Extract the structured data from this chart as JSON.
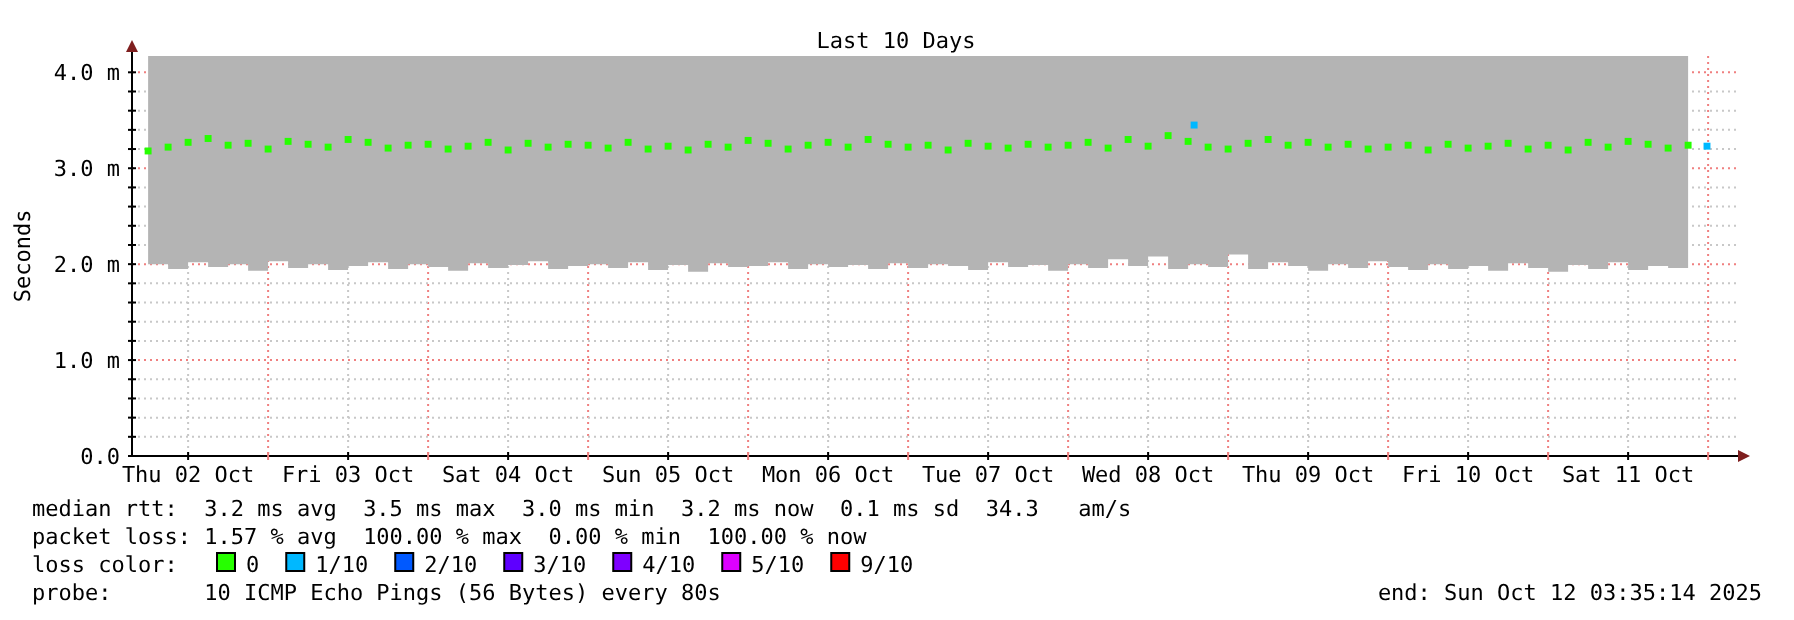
{
  "chart_data": {
    "type": "scatter",
    "title": "Last 10 Days",
    "ylabel": "Seconds",
    "xlim": [
      "2025-10-02T03:35",
      "2025-10-12T03:35"
    ],
    "xticks": [
      {
        "value": "2025-10-02T12:00",
        "label": "Thu 02 Oct"
      },
      {
        "value": "2025-10-03T00:00",
        "label": null
      },
      {
        "value": "2025-10-03T12:00",
        "label": "Fri 03 Oct"
      },
      {
        "value": "2025-10-04T00:00",
        "label": null
      },
      {
        "value": "2025-10-04T12:00",
        "label": "Sat 04 Oct"
      },
      {
        "value": "2025-10-05T00:00",
        "label": null
      },
      {
        "value": "2025-10-05T12:00",
        "label": "Sun 05 Oct"
      },
      {
        "value": "2025-10-06T00:00",
        "label": null
      },
      {
        "value": "2025-10-06T12:00",
        "label": "Mon 06 Oct"
      },
      {
        "value": "2025-10-07T00:00",
        "label": null
      },
      {
        "value": "2025-10-07T12:00",
        "label": "Tue 07 Oct"
      },
      {
        "value": "2025-10-08T00:00",
        "label": null
      },
      {
        "value": "2025-10-08T12:00",
        "label": "Wed 08 Oct"
      },
      {
        "value": "2025-10-09T00:00",
        "label": null
      },
      {
        "value": "2025-10-09T12:00",
        "label": "Thu 09 Oct"
      },
      {
        "value": "2025-10-10T00:00",
        "label": null
      },
      {
        "value": "2025-10-10T12:00",
        "label": "Fri 10 Oct"
      },
      {
        "value": "2025-10-11T00:00",
        "label": null
      },
      {
        "value": "2025-10-11T12:00",
        "label": "Sat 11 Oct"
      },
      {
        "value": "2025-10-12T00:00",
        "label": null
      }
    ],
    "ylim": [
      0,
      4.17
    ],
    "yticks": [
      {
        "value": 0,
        "label": "0.0"
      },
      {
        "value": 0.2,
        "label": null
      },
      {
        "value": 0.4,
        "label": null
      },
      {
        "value": 0.6,
        "label": null
      },
      {
        "value": 0.8,
        "label": null
      },
      {
        "value": 1,
        "label": "1.0 m"
      },
      {
        "value": 1.2,
        "label": null
      },
      {
        "value": 1.4,
        "label": null
      },
      {
        "value": 1.6,
        "label": null
      },
      {
        "value": 1.8,
        "label": null
      },
      {
        "value": 2,
        "label": "2.0 m"
      },
      {
        "value": 2.2,
        "label": null
      },
      {
        "value": 2.4,
        "label": null
      },
      {
        "value": 2.6,
        "label": null
      },
      {
        "value": 2.8,
        "label": null
      },
      {
        "value": 3,
        "label": "3.0 m"
      },
      {
        "value": 3.2,
        "label": null
      },
      {
        "value": 3.4,
        "label": null
      },
      {
        "value": 3.6,
        "label": null
      },
      {
        "value": 3.8,
        "label": null
      },
      {
        "value": 4,
        "label": "4.0 m"
      }
    ],
    "grid": true,
    "marker": "square",
    "legend": "bottom",
    "legend_title": "loss color:",
    "annotations": [
      "median rtt:  3.2 ms avg  3.5 ms max  3.0 ms min  3.2 ms now  0.1 ms sd  34.3   am/s",
      "packet loss: 1.57 % avg  100.00 % max  0.00 % min  100.00 % now",
      "probe:       10 ICMP Echo Pings (56 Bytes) every 80s",
      "end: Sun Oct 12 03:35:14 2025"
    ],
    "series": [
      {
        "name": "0",
        "color": "#26ff00",
        "x": [
          "2025-10-02T06:00",
          "2025-10-02T09:00",
          "2025-10-02T12:00",
          "2025-10-02T15:00",
          "2025-10-02T18:00",
          "2025-10-02T21:00",
          "2025-10-03T00:00",
          "2025-10-03T03:00",
          "2025-10-03T06:00",
          "2025-10-03T09:00",
          "2025-10-03T12:00",
          "2025-10-03T15:00",
          "2025-10-03T18:00",
          "2025-10-03T21:00",
          "2025-10-04T00:00",
          "2025-10-04T03:00",
          "2025-10-04T06:00",
          "2025-10-04T09:00",
          "2025-10-04T12:00",
          "2025-10-04T15:00",
          "2025-10-04T18:00",
          "2025-10-04T21:00",
          "2025-10-05T00:00",
          "2025-10-05T03:00",
          "2025-10-05T06:00",
          "2025-10-05T09:00",
          "2025-10-05T12:00",
          "2025-10-05T15:00",
          "2025-10-05T18:00",
          "2025-10-05T21:00",
          "2025-10-06T00:00",
          "2025-10-06T03:00",
          "2025-10-06T06:00",
          "2025-10-06T09:00",
          "2025-10-06T12:00",
          "2025-10-06T15:00",
          "2025-10-06T18:00",
          "2025-10-06T21:00",
          "2025-10-07T00:00",
          "2025-10-07T03:00",
          "2025-10-07T06:00",
          "2025-10-07T09:00",
          "2025-10-07T12:00",
          "2025-10-07T15:00",
          "2025-10-07T18:00",
          "2025-10-07T21:00",
          "2025-10-08T00:00",
          "2025-10-08T03:00",
          "2025-10-08T06:00",
          "2025-10-08T09:00",
          "2025-10-08T12:00",
          "2025-10-08T15:00",
          "2025-10-08T18:00",
          "2025-10-08T21:00",
          "2025-10-09T00:00",
          "2025-10-09T03:00",
          "2025-10-09T06:00",
          "2025-10-09T09:00",
          "2025-10-09T12:00",
          "2025-10-09T15:00",
          "2025-10-09T18:00",
          "2025-10-09T21:00",
          "2025-10-10T00:00",
          "2025-10-10T03:00",
          "2025-10-10T06:00",
          "2025-10-10T09:00",
          "2025-10-10T12:00",
          "2025-10-10T15:00",
          "2025-10-10T18:00",
          "2025-10-10T21:00",
          "2025-10-11T00:00",
          "2025-10-11T03:00",
          "2025-10-11T06:00",
          "2025-10-11T09:00",
          "2025-10-11T12:00",
          "2025-10-11T15:00",
          "2025-10-11T18:00",
          "2025-10-11T21:00"
        ],
        "values": [
          3.18,
          3.22,
          3.27,
          3.31,
          3.24,
          3.26,
          3.2,
          3.28,
          3.25,
          3.22,
          3.3,
          3.27,
          3.21,
          3.24,
          3.25,
          3.2,
          3.23,
          3.27,
          3.19,
          3.26,
          3.22,
          3.25,
          3.24,
          3.21,
          3.27,
          3.2,
          3.23,
          3.19,
          3.25,
          3.22,
          3.29,
          3.26,
          3.2,
          3.24,
          3.27,
          3.22,
          3.3,
          3.25,
          3.22,
          3.24,
          3.19,
          3.26,
          3.23,
          3.21,
          3.25,
          3.22,
          3.24,
          3.27,
          3.21,
          3.3,
          3.23,
          3.34,
          3.28,
          3.22,
          3.2,
          3.26,
          3.3,
          3.24,
          3.27,
          3.22,
          3.25,
          3.2,
          3.22,
          3.24,
          3.19,
          3.25,
          3.21,
          3.23,
          3.26,
          3.2,
          3.24,
          3.19,
          3.27,
          3.22,
          3.28,
          3.25,
          3.21,
          3.24
        ],
        "lower": [
          2.0,
          1.95,
          2.02,
          1.97,
          2.0,
          1.93,
          2.03,
          1.96,
          2.0,
          1.94,
          1.98,
          2.02,
          1.95,
          2.0,
          1.97,
          1.93,
          2.01,
          1.96,
          1.99,
          2.03,
          1.95,
          1.98,
          2.0,
          1.96,
          2.02,
          1.94,
          1.99,
          1.92,
          2.01,
          1.97,
          1.98,
          2.02,
          1.95,
          2.0,
          1.97,
          1.99,
          1.95,
          2.01,
          1.96,
          2.0,
          1.98,
          1.94,
          2.02,
          1.97,
          1.99,
          1.93,
          2.0,
          1.96,
          2.05,
          1.98,
          2.08,
          1.95,
          2.0,
          1.97,
          2.1,
          1.95,
          2.02,
          1.98,
          1.93,
          2.0,
          1.96,
          2.03,
          1.97,
          1.94,
          2.0,
          1.95,
          1.98,
          1.93,
          2.01,
          1.96,
          1.92,
          1.99,
          1.95,
          2.02,
          1.94,
          1.98,
          1.96,
          2.0
        ],
        "upper": [
          4.17,
          4.17,
          4.17,
          4.17,
          4.17,
          4.17,
          4.17,
          4.17,
          4.17,
          4.17,
          4.17,
          4.17,
          4.17,
          4.17,
          4.17,
          4.17,
          4.17,
          4.17,
          4.17,
          4.17,
          4.17,
          4.17,
          4.17,
          4.17,
          4.17,
          4.17,
          4.17,
          4.17,
          4.17,
          4.17,
          4.17,
          4.17,
          4.17,
          4.17,
          4.17,
          4.17,
          4.17,
          4.17,
          4.17,
          4.17,
          4.17,
          4.17,
          4.17,
          4.17,
          4.17,
          4.17,
          4.17,
          4.17,
          4.17,
          4.17,
          4.17,
          4.17,
          4.17,
          4.17,
          4.17,
          4.17,
          4.17,
          4.17,
          4.17,
          4.17,
          4.17,
          4.17,
          4.17,
          4.17,
          4.17,
          4.17,
          4.17,
          4.17,
          4.17,
          4.17,
          4.17,
          4.17,
          4.17,
          4.17,
          4.17,
          4.17,
          4.17,
          4.17
        ]
      },
      {
        "name": "1/10",
        "color": "#00b8ff",
        "x": [
          "2025-10-08T18:54",
          "2025-10-11T23:50"
        ],
        "values": [
          3.45,
          3.23
        ]
      },
      {
        "name": "2/10",
        "color": "#0059ff"
      },
      {
        "name": "3/10",
        "color": "#5e00ff"
      },
      {
        "name": "4/10",
        "color": "#7e00ff"
      },
      {
        "name": "5/10",
        "color": "#dd00ff"
      },
      {
        "name": "9/10",
        "color": "#ff0000"
      }
    ]
  }
}
